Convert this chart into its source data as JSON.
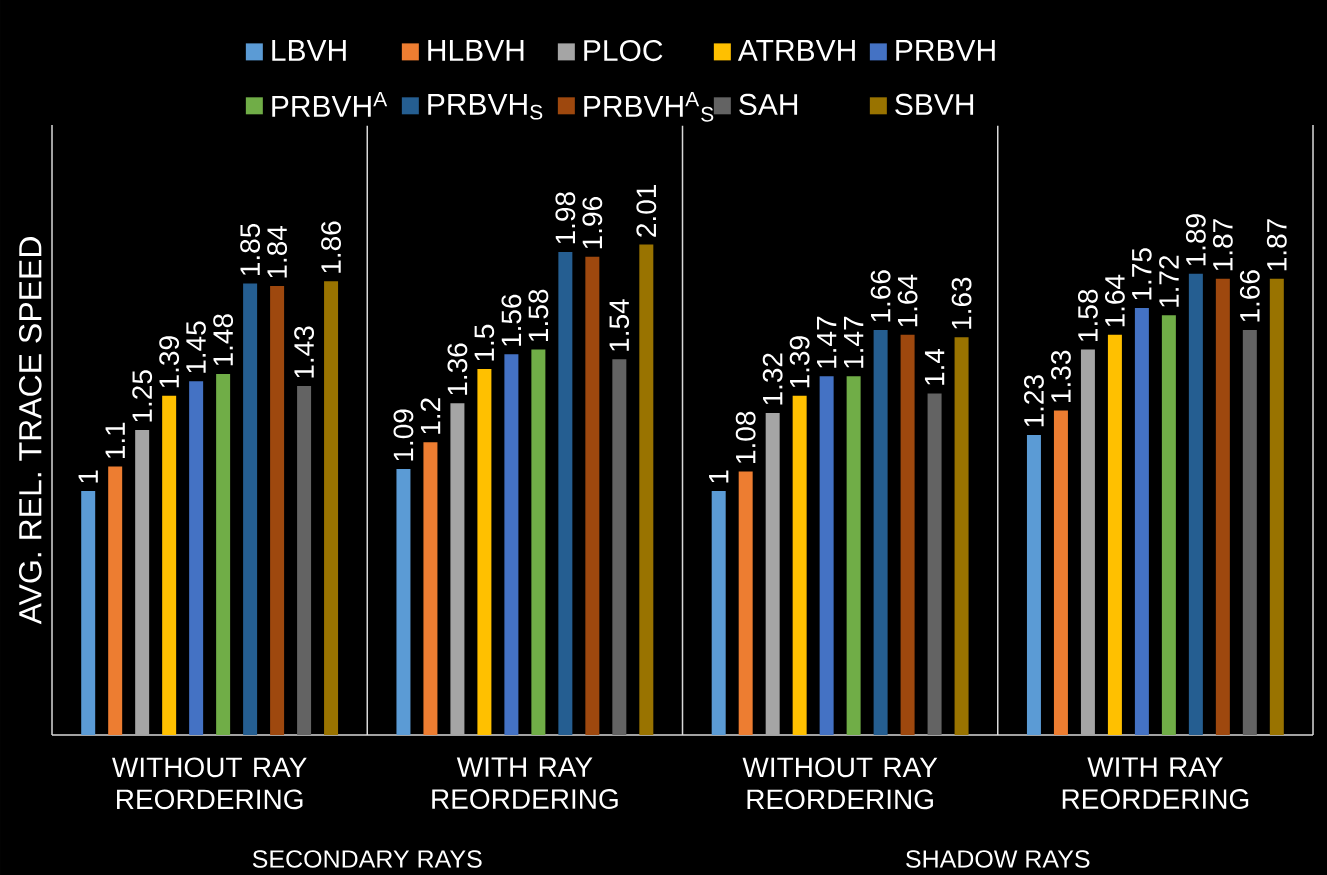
{
  "chart_data": {
    "type": "bar",
    "ylabel": "AVG. REL. TRACE SPEED",
    "categories": [
      "WITHOUT RAY REORDERING",
      "WITH RAY REORDERING",
      "WITHOUT RAY REORDERING",
      "WITH RAY REORDERING"
    ],
    "annotations": [
      "SECONDARY RAYS",
      "SHADOW RAYS"
    ],
    "series": [
      {
        "name": "LBVH",
        "color": "#5b9bd5",
        "values": [
          1,
          1.09,
          1,
          1.23
        ]
      },
      {
        "name": "HLBVH",
        "color": "#ed7d31",
        "values": [
          1.1,
          1.2,
          1.08,
          1.33
        ]
      },
      {
        "name": "PLOC",
        "color": "#a5a5a5",
        "values": [
          1.25,
          1.36,
          1.32,
          1.58
        ]
      },
      {
        "name": "ATRBVH",
        "color": "#ffc000",
        "values": [
          1.39,
          1.5,
          1.39,
          1.64
        ]
      },
      {
        "name": "PRBVH",
        "color": "#4472c4",
        "values": [
          1.45,
          1.56,
          1.47,
          1.75
        ]
      },
      {
        "name": "PRBVH$^{A}$",
        "color": "#70ad47",
        "values": [
          1.48,
          1.58,
          1.47,
          1.72
        ]
      },
      {
        "name": "PRBVH$_{S}$",
        "color": "#255e91",
        "values": [
          1.85,
          1.98,
          1.66,
          1.89
        ]
      },
      {
        "name": "PRBVH$^{A}$$_{S}$",
        "color": "#9e480e",
        "values": [
          1.84,
          1.96,
          1.64,
          1.87
        ]
      },
      {
        "name": "SAH",
        "color": "#636363",
        "values": [
          1.43,
          1.54,
          1.4,
          1.66
        ]
      },
      {
        "name": "SBVH",
        "color": "#997300",
        "values": [
          1.86,
          2.01,
          1.63,
          1.87
        ]
      }
    ],
    "ylim": [
      0,
      2.5
    ],
    "grid": "x",
    "legend": "top",
    "tick_labels": "x",
    "data_labels": true
  }
}
